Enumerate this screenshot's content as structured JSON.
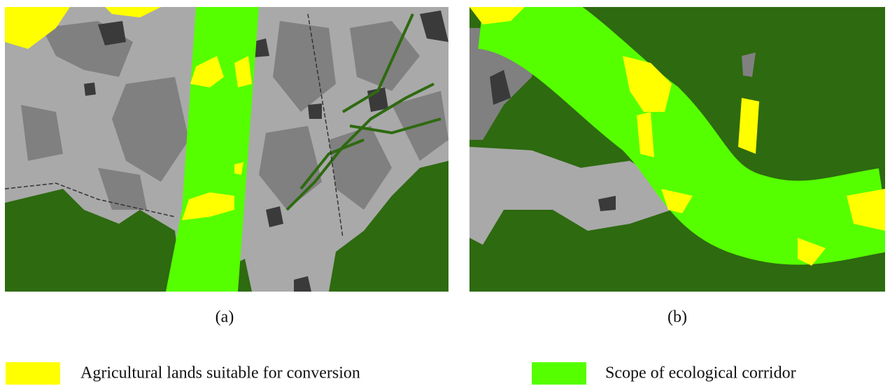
{
  "panels": [
    {
      "label": "(a)"
    },
    {
      "label": "(b)"
    }
  ],
  "legend": [
    {
      "label": "Agricultural lands suitable for conversion",
      "color": "#ffff00"
    },
    {
      "label": "Scope of ecological corridor",
      "color": "#55ff00"
    }
  ]
}
